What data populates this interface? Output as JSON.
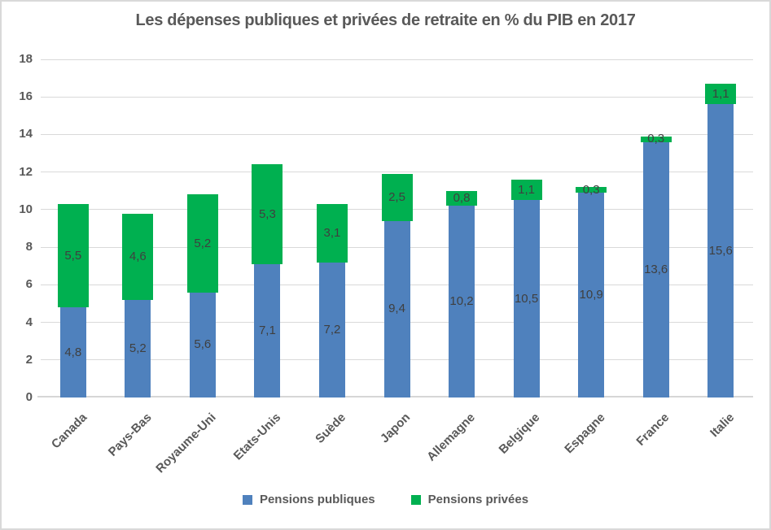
{
  "chart_data": {
    "type": "bar",
    "stacked": true,
    "title": "Les dépenses publiques et privées de retraite en % du PIB en 2017",
    "categories": [
      "Canada",
      "Pays-Bas",
      "Royaume-Uni",
      "Etats-Unis",
      "Suède",
      "Japon",
      "Allemagne",
      "Belgique",
      "Espagne",
      "France",
      "Italie"
    ],
    "series": [
      {
        "name": "Pensions publiques",
        "color": "#4F81BD",
        "values": [
          4.8,
          5.2,
          5.6,
          7.1,
          7.2,
          9.4,
          10.2,
          10.5,
          10.9,
          13.6,
          15.6
        ],
        "labels": [
          "4,8",
          "5,2",
          "5,6",
          "7,1",
          "7,2",
          "9,4",
          "10,2",
          "10,5",
          "10,9",
          "13,6",
          "15,6"
        ]
      },
      {
        "name": "Pensions privées",
        "color": "#00B050",
        "values": [
          5.5,
          4.6,
          5.2,
          5.3,
          3.1,
          2.5,
          0.8,
          1.1,
          0.3,
          0.3,
          1.1
        ],
        "labels": [
          "5,5",
          "4,6",
          "5,2",
          "5,3",
          "3,1",
          "2,5",
          "0,8",
          "1,1",
          "0,3",
          "0,3",
          "1,1"
        ]
      }
    ],
    "xlabel": "",
    "ylabel": "",
    "ylim": [
      0,
      18
    ],
    "ytick_step": 2,
    "yticks": [
      "0",
      "2",
      "4",
      "6",
      "8",
      "10",
      "12",
      "14",
      "16",
      "18"
    ],
    "grid": true,
    "legend_position": "bottom",
    "grid_color": "#D9D9D9",
    "text_color": "#595959",
    "data_label_color": "#3F3F3F"
  }
}
